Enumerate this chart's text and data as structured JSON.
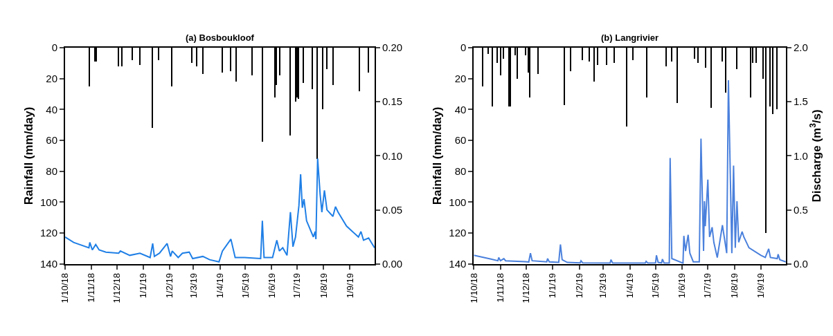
{
  "chart_data": [
    {
      "type": "bar",
      "title": "(a) Bosboukloof",
      "ylabel": "Rainfall (mm/day)",
      "legend": false,
      "xlim": [
        "2018-10-01",
        "2019-09-30"
      ],
      "xticks": [
        {
          "value": "2018-10-01",
          "label": "1/10/18"
        },
        {
          "value": "2018-11-01",
          "label": "1/11/18"
        },
        {
          "value": "2018-12-01",
          "label": "1/12/18"
        },
        {
          "value": "2019-01-01",
          "label": "1/1/19"
        },
        {
          "value": "2019-02-01",
          "label": "1/2/19"
        },
        {
          "value": "2019-03-01",
          "label": "1/3/19"
        },
        {
          "value": "2019-04-01",
          "label": "1/4/19"
        },
        {
          "value": "2019-05-01",
          "label": "1/5/19"
        },
        {
          "value": "2019-06-01",
          "label": "1/6/19"
        },
        {
          "value": "2019-07-01",
          "label": "1/7/19"
        },
        {
          "value": "2019-08-01",
          "label": "1/8/19"
        },
        {
          "value": "2019-09-01",
          "label": "1/9/19"
        }
      ],
      "ylim": [
        140,
        0
      ],
      "yticks": [
        0,
        20,
        40,
        60,
        80,
        100,
        120,
        140
      ],
      "y2lim": [
        0,
        0.2
      ],
      "y2ticks": [
        {
          "value": 0,
          "label": "0.00"
        },
        {
          "value": 0.05,
          "label": "0.05"
        },
        {
          "value": 0.1,
          "label": "0.10"
        },
        {
          "value": 0.15,
          "label": "0.15"
        },
        {
          "value": 0.2,
          "label": "0.20"
        }
      ],
      "series": [
        {
          "color": "#000000",
          "x": [
            "2018-10-30",
            "2018-11-05",
            "2018-11-07",
            "2018-12-03",
            "2018-12-07",
            "2018-12-19",
            "2018-12-28",
            "2019-01-12",
            "2019-01-19",
            "2019-02-04",
            "2019-02-27",
            "2019-03-05",
            "2019-03-12",
            "2019-04-04",
            "2019-04-14",
            "2019-04-20",
            "2019-05-09",
            "2019-05-21",
            "2019-06-05",
            "2019-06-07",
            "2019-06-11",
            "2019-06-23",
            "2019-06-29",
            "2019-07-01",
            "2019-07-03",
            "2019-07-08",
            "2019-07-19",
            "2019-07-25",
            "2019-07-31",
            "2019-08-05",
            "2019-08-12",
            "2019-09-12",
            "2019-09-23"
          ],
          "values": [
            25,
            9,
            9,
            12,
            12,
            8,
            11,
            52,
            8,
            25,
            10,
            12,
            17,
            16,
            15,
            22,
            18,
            61,
            32,
            24,
            18,
            57,
            35,
            32,
            33,
            23,
            27,
            72,
            40,
            14,
            24,
            28,
            16
          ]
        },
        {
          "type": "line",
          "axis": "y2",
          "color": "#1f7fe6",
          "x": [
            "2018-10-01",
            "2018-10-11",
            "2018-10-29",
            "2018-10-30",
            "2018-11-02",
            "2018-11-06",
            "2018-11-10",
            "2018-11-18",
            "2018-12-03",
            "2018-12-05",
            "2018-12-16",
            "2018-12-28",
            "2019-01-09",
            "2019-01-12",
            "2019-01-14",
            "2019-01-20",
            "2019-01-29",
            "2019-02-02",
            "2019-02-04",
            "2019-02-11",
            "2019-02-16",
            "2019-02-24",
            "2019-02-28",
            "2019-03-12",
            "2019-03-20",
            "2019-03-31",
            "2019-04-04",
            "2019-04-14",
            "2019-04-19",
            "2019-04-30",
            "2019-05-19",
            "2019-05-21",
            "2019-05-23",
            "2019-06-02",
            "2019-06-07",
            "2019-06-10",
            "2019-06-14",
            "2019-06-19",
            "2019-06-23",
            "2019-06-26",
            "2019-06-29",
            "2019-07-03",
            "2019-07-05",
            "2019-07-07",
            "2019-07-09",
            "2019-07-12",
            "2019-07-20",
            "2019-07-22",
            "2019-07-23",
            "2019-07-25",
            "2019-07-28",
            "2019-07-30",
            "2019-08-02",
            "2019-08-05",
            "2019-08-12",
            "2019-08-15",
            "2019-08-18",
            "2019-08-28",
            "2019-09-11",
            "2019-09-14",
            "2019-09-17",
            "2019-09-23",
            "2019-09-26",
            "2019-09-30"
          ],
          "values": [
            0.025,
            0.02,
            0.015,
            0.02,
            0.013,
            0.018,
            0.013,
            0.011,
            0.01,
            0.012,
            0.008,
            0.01,
            0.006,
            0.019,
            0.007,
            0.01,
            0.019,
            0.007,
            0.012,
            0.006,
            0.01,
            0.011,
            0.005,
            0.007,
            0.004,
            0.002,
            0.012,
            0.023,
            0.006,
            0.006,
            0.005,
            0.04,
            0.006,
            0.006,
            0.022,
            0.012,
            0.015,
            0.008,
            0.048,
            0.016,
            0.025,
            0.054,
            0.083,
            0.052,
            0.06,
            0.04,
            0.025,
            0.03,
            0.023,
            0.0975,
            0.064,
            0.048,
            0.068,
            0.05,
            0.044,
            0.053,
            0.048,
            0.035,
            0.025,
            0.03,
            0.022,
            0.024,
            0.02,
            0.015
          ]
        }
      ]
    },
    {
      "type": "bar",
      "title": "(b) Langrivier",
      "ylabel": "Rainfall (mm/day)",
      "y2label": "Discharge (m$^{3}$/s)",
      "legend": false,
      "xlim": [
        "2018-10-01",
        "2019-09-30"
      ],
      "xticks": [
        {
          "value": "2018-10-01",
          "label": "1/10/18"
        },
        {
          "value": "2018-11-01",
          "label": "1/11/18"
        },
        {
          "value": "2018-12-01",
          "label": "1/12/18"
        },
        {
          "value": "2019-01-01",
          "label": "1/1/19"
        },
        {
          "value": "2019-02-01",
          "label": "1/2/19"
        },
        {
          "value": "2019-03-01",
          "label": "1/3/19"
        },
        {
          "value": "2019-04-01",
          "label": "1/4/19"
        },
        {
          "value": "2019-05-01",
          "label": "1/5/19"
        },
        {
          "value": "2019-06-01",
          "label": "1/6/19"
        },
        {
          "value": "2019-07-01",
          "label": "1/7/19"
        },
        {
          "value": "2019-08-01",
          "label": "1/8/19"
        },
        {
          "value": "2019-09-01",
          "label": "1/9/19"
        }
      ],
      "ylim": [
        140,
        0
      ],
      "yticks": [
        0,
        20,
        40,
        60,
        80,
        100,
        120,
        140
      ],
      "y2lim": [
        0,
        2.0
      ],
      "y2ticks": [
        {
          "value": 0,
          "label": "0.0"
        },
        {
          "value": 0.5,
          "label": "0.5"
        },
        {
          "value": 1.0,
          "label": "1.0"
        },
        {
          "value": 1.5,
          "label": "1.5"
        },
        {
          "value": 2.0,
          "label": "2.0"
        }
      ],
      "series": [
        {
          "color": "#000000",
          "x": [
            "2018-10-12",
            "2018-10-18",
            "2018-10-23",
            "2018-10-29",
            "2018-11-02",
            "2018-11-05",
            "2018-11-11",
            "2018-11-13",
            "2018-11-19",
            "2018-11-21",
            "2018-12-01",
            "2018-12-04",
            "2018-12-06",
            "2018-12-15",
            "2019-01-15",
            "2019-01-22",
            "2019-02-05",
            "2019-02-13",
            "2019-02-19",
            "2019-02-23",
            "2019-03-05",
            "2019-03-14",
            "2019-03-29",
            "2019-04-05",
            "2019-04-21",
            "2019-05-14",
            "2019-05-20",
            "2019-05-27",
            "2019-06-16",
            "2019-06-20",
            "2019-06-29",
            "2019-07-05",
            "2019-07-18",
            "2019-07-22",
            "2019-08-04",
            "2019-08-20",
            "2019-08-23",
            "2019-08-27",
            "2019-09-04",
            "2019-09-07",
            "2019-09-12",
            "2019-09-15",
            "2019-09-20"
          ],
          "values": [
            25,
            4,
            38,
            10,
            18,
            7,
            38,
            38,
            5,
            20,
            5,
            16,
            32,
            17,
            37,
            15,
            8,
            9,
            22,
            11,
            11,
            10,
            51,
            8,
            32,
            12,
            9,
            36,
            7,
            10,
            13,
            39,
            9,
            29,
            14,
            32,
            10,
            10,
            20,
            120,
            38,
            43,
            40
          ]
        },
        {
          "type": "line",
          "axis": "y2",
          "color": "#4a80dc",
          "x": [
            "2018-10-01",
            "2018-10-21",
            "2018-10-29",
            "2018-10-30",
            "2018-11-01",
            "2018-11-05",
            "2018-11-07",
            "2018-11-30",
            "2018-12-04",
            "2018-12-06",
            "2018-12-08",
            "2018-12-25",
            "2018-12-26",
            "2018-12-28",
            "2019-01-08",
            "2019-01-10",
            "2019-01-12",
            "2019-01-18",
            "2019-02-02",
            "2019-02-03",
            "2019-02-05",
            "2019-03-09",
            "2019-03-10",
            "2019-03-12",
            "2019-04-19",
            "2019-04-20",
            "2019-04-22",
            "2019-05-01",
            "2019-05-02",
            "2019-05-04",
            "2019-05-08",
            "2019-05-09",
            "2019-05-11",
            "2019-05-17",
            "2019-05-18",
            "2019-05-20",
            "2019-06-02",
            "2019-06-03",
            "2019-06-05",
            "2019-06-08",
            "2019-06-10",
            "2019-06-14",
            "2019-06-21",
            "2019-06-23",
            "2019-06-26",
            "2019-06-27",
            "2019-06-28",
            "2019-07-01",
            "2019-07-03",
            "2019-07-06",
            "2019-07-08",
            "2019-07-12",
            "2019-07-18",
            "2019-07-23",
            "2019-07-25",
            "2019-07-29",
            "2019-07-31",
            "2019-08-02",
            "2019-08-04",
            "2019-08-06",
            "2019-08-10",
            "2019-08-12",
            "2019-08-18",
            "2019-09-01",
            "2019-09-06",
            "2019-09-10",
            "2019-09-12",
            "2019-09-20",
            "2019-09-21",
            "2019-09-23",
            "2019-09-30"
          ],
          "values": [
            0.08,
            0.045,
            0.03,
            0.06,
            0.03,
            0.05,
            0.03,
            0.022,
            0.018,
            0.1,
            0.03,
            0.02,
            0.05,
            0.02,
            0.015,
            0.18,
            0.04,
            0.015,
            0.01,
            0.03,
            0.01,
            0.008,
            0.04,
            0.008,
            0.008,
            0.025,
            0.008,
            0.01,
            0.08,
            0.015,
            0.01,
            0.045,
            0.008,
            0.008,
            0.98,
            0.05,
            0.008,
            0.26,
            0.12,
            0.27,
            0.1,
            0.02,
            0.02,
            1.16,
            0.12,
            0.58,
            0.35,
            0.78,
            0.25,
            0.34,
            0.2,
            0.06,
            0.36,
            0.1,
            1.7,
            0.1,
            0.91,
            0.15,
            0.58,
            0.2,
            0.3,
            0.25,
            0.15,
            0.08,
            0.06,
            0.14,
            0.06,
            0.05,
            0.09,
            0.04,
            0.02
          ]
        }
      ]
    }
  ]
}
